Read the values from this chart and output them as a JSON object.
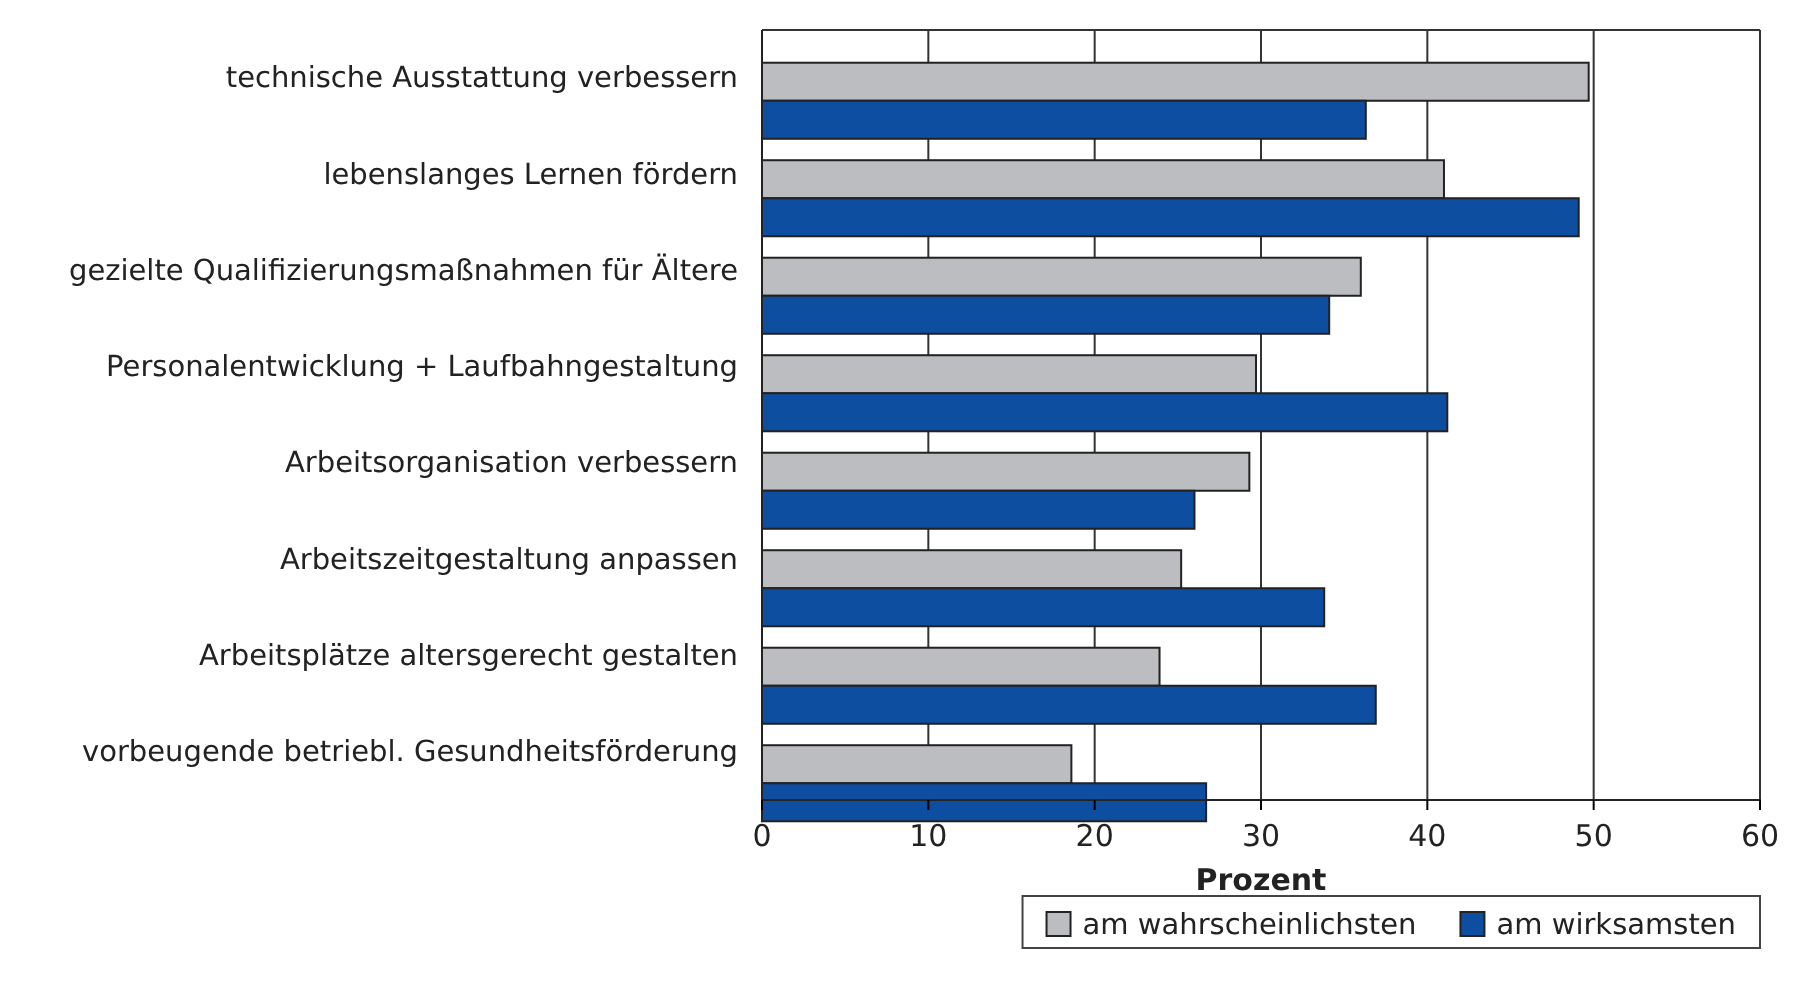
{
  "chart_data": {
    "type": "bar",
    "orientation": "horizontal",
    "xlabel": "Prozent",
    "categories": [
      "technische Ausstattung verbessern",
      "lebenslanges Lernen fördern",
      "gezielte Qualifizierungsmaßnahmen für Ältere",
      "Personalentwicklung + Laufbahngestaltung",
      "Arbeitsorganisation verbessern",
      "Arbeitszeitgestaltung anpassen",
      "Arbeitsplätze altersgerecht gestalten",
      "vorbeugende betriebl. Gesundheitsförderung"
    ],
    "series": [
      {
        "name": "am wahrscheinlichsten",
        "color": "#bcbdc0",
        "values": [
          49.7,
          41.0,
          36.0,
          29.7,
          29.3,
          25.2,
          23.9,
          18.6
        ]
      },
      {
        "name": "am wirksamsten",
        "color": "#0e4ea0",
        "values": [
          36.3,
          49.1,
          34.1,
          41.2,
          26.0,
          33.8,
          36.9,
          26.7
        ]
      }
    ],
    "xlim": [
      0,
      60
    ],
    "xticks": [
      0,
      10,
      20,
      30,
      40,
      50,
      60
    ],
    "grid": "x",
    "legend": "bottom right"
  }
}
